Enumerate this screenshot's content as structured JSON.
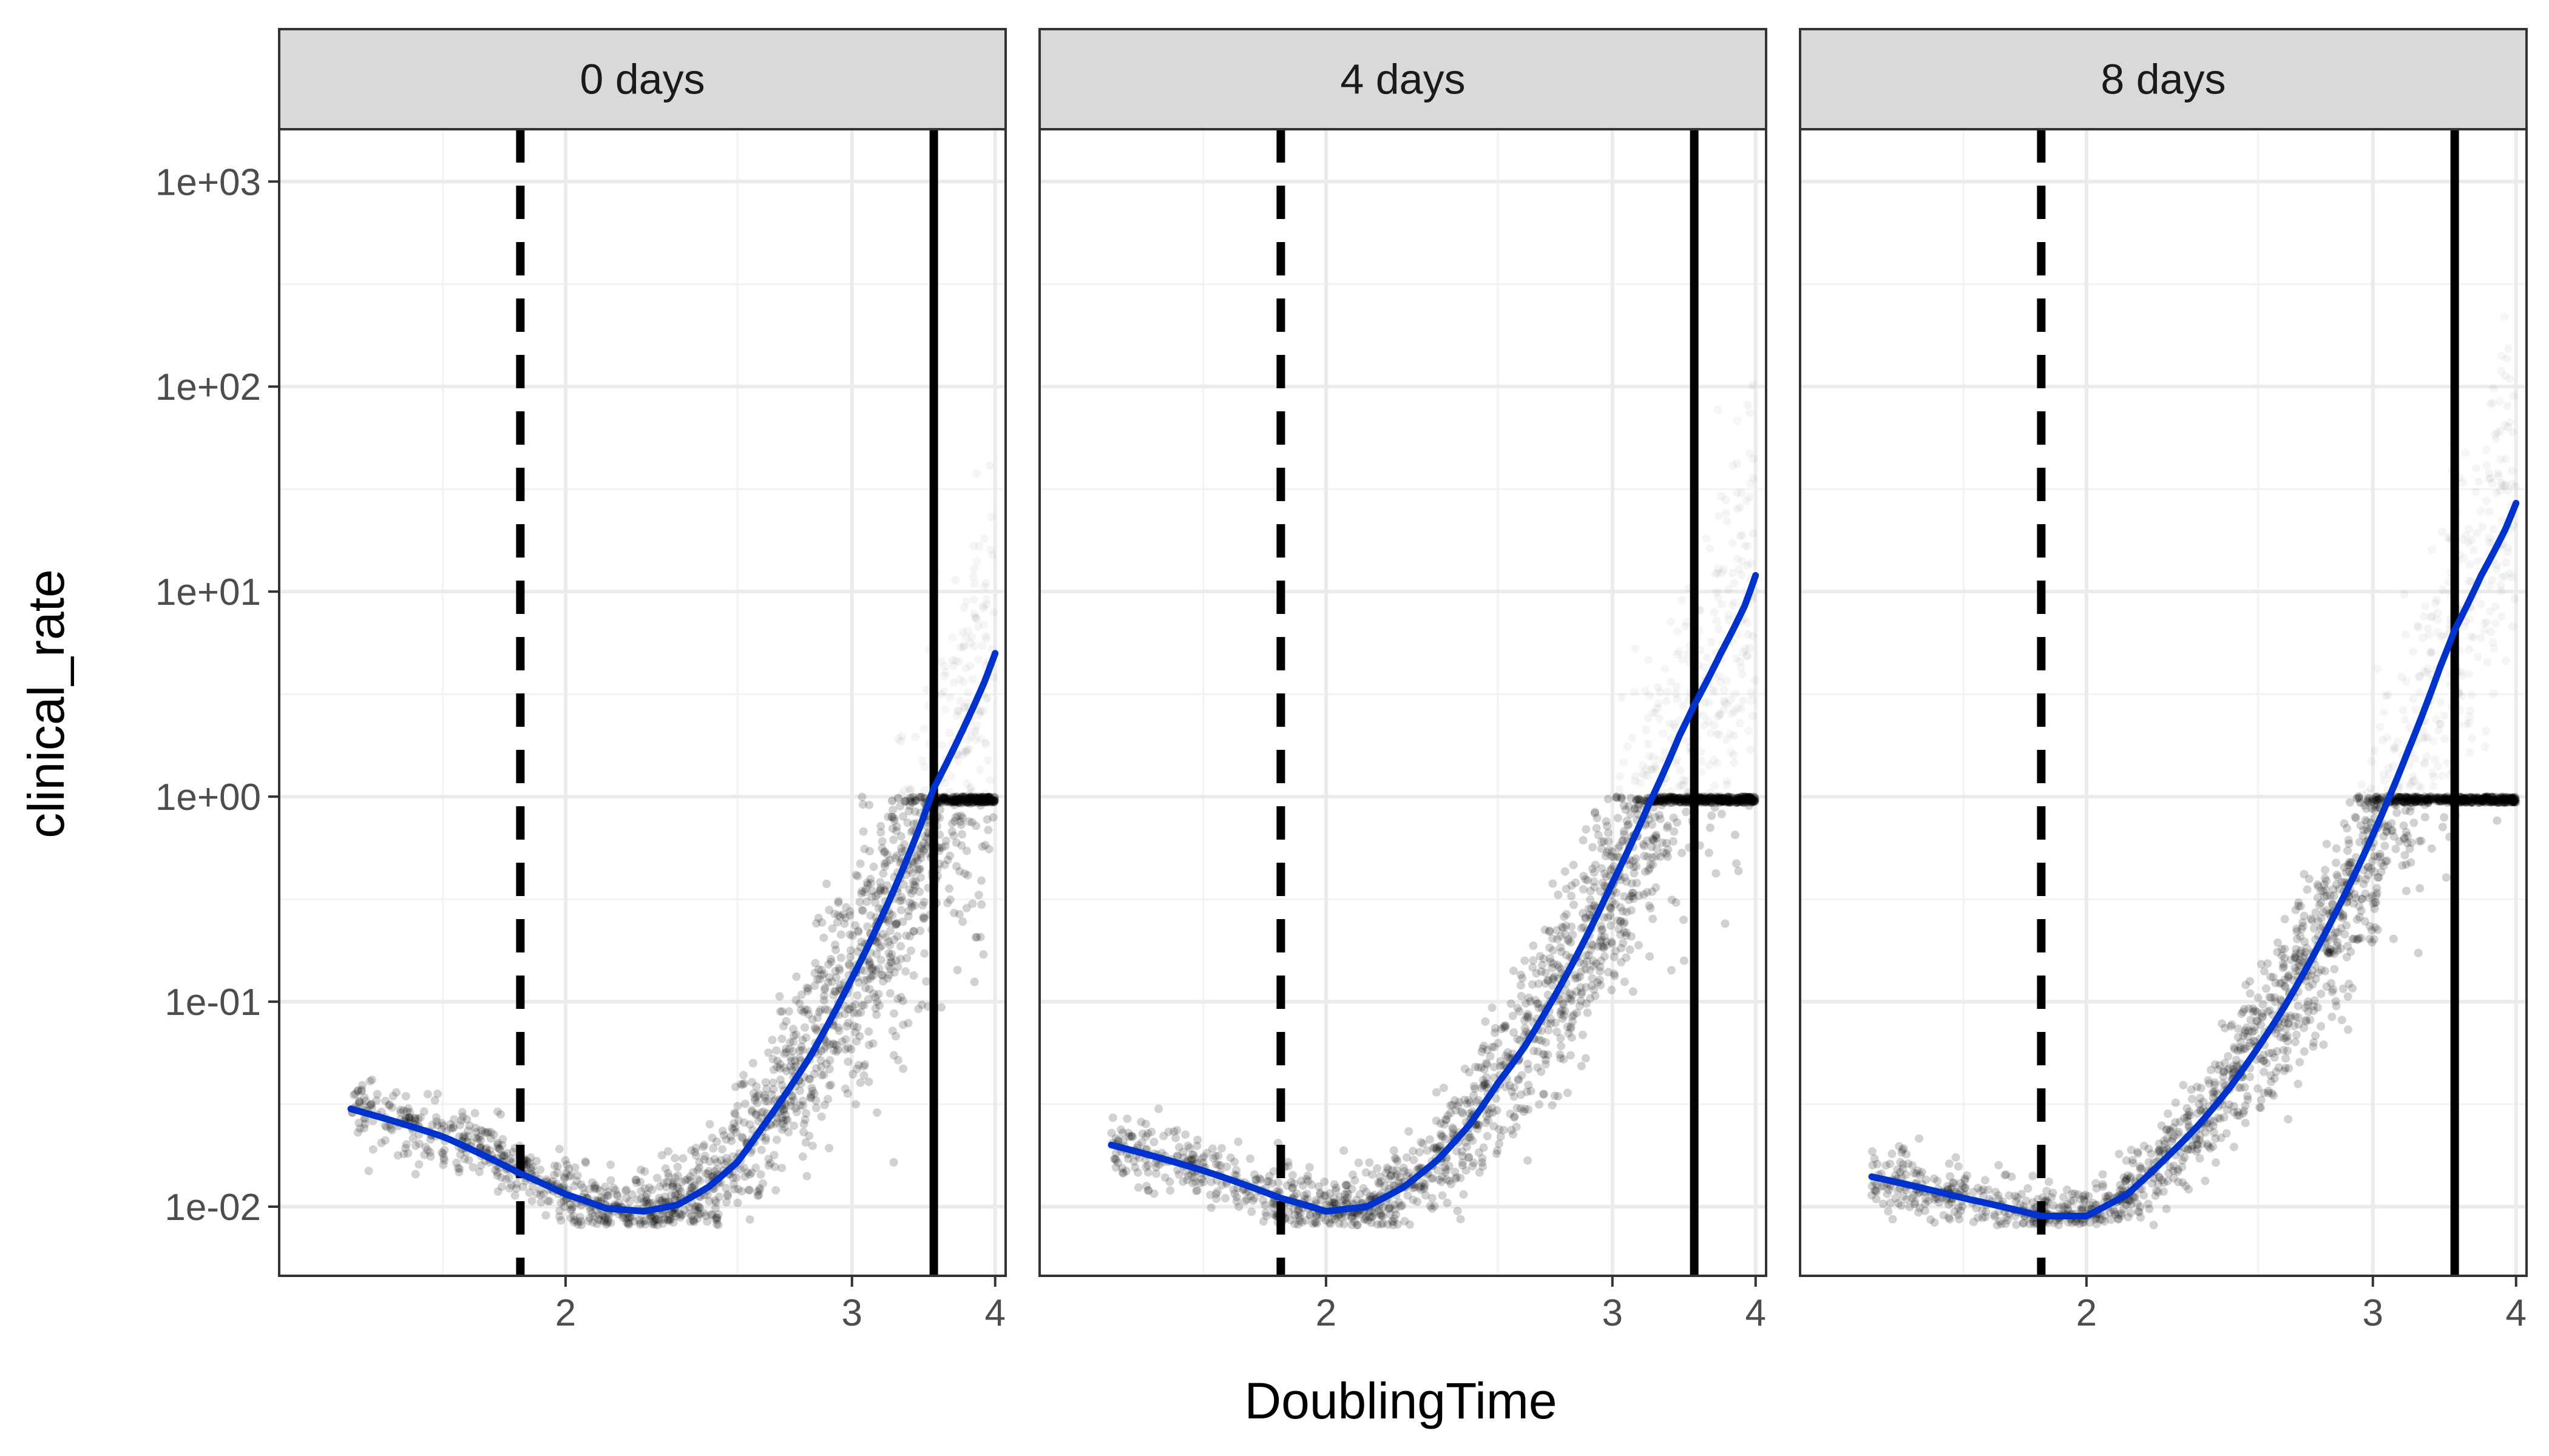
{
  "chart_data": {
    "type": "scatter",
    "xlabel": "DoublingTime",
    "ylabel": "clinical_rate",
    "x_scale": "reciprocal",
    "y_scale": "log10",
    "xlim": [
      1.5,
      4.1
    ],
    "ylim": [
      0.0046,
      1800
    ],
    "x_ticks": [
      2,
      3,
      4
    ],
    "y_ticks": [
      0.01,
      0.1,
      1,
      10,
      100,
      1000
    ],
    "y_tick_labels": [
      "1e-02",
      "1e-01",
      "1e+00",
      "1e+01",
      "1e+02",
      "1e+03"
    ],
    "grid": true,
    "point_color": "#000000",
    "fit_color": "#0033cc",
    "reference_lines": [
      {
        "style": "dashed",
        "x": 1.9
      },
      {
        "style": "solid",
        "x": 3.5
      }
    ],
    "panels": [
      {
        "facet": "0 days",
        "smooth": {
          "x": [
            1.6,
            1.75,
            1.9,
            2.0,
            2.1,
            2.2,
            2.3,
            2.4,
            2.5,
            2.6,
            2.8,
            3.0,
            3.2,
            3.4,
            3.5,
            3.7,
            3.9,
            4.0
          ],
          "y": [
            0.03,
            0.022,
            0.0145,
            0.0115,
            0.0098,
            0.0095,
            0.0102,
            0.0125,
            0.0165,
            0.025,
            0.055,
            0.13,
            0.3,
            0.7,
            1.1,
            2.0,
            3.6,
            5.0
          ]
        }
      },
      {
        "facet": "4 days",
        "smooth": {
          "x": [
            1.6,
            1.75,
            1.9,
            2.0,
            2.1,
            2.2,
            2.3,
            2.4,
            2.5,
            2.6,
            2.8,
            3.0,
            3.2,
            3.4,
            3.5,
            3.7,
            3.9,
            4.0
          ],
          "y": [
            0.02,
            0.015,
            0.011,
            0.0095,
            0.01,
            0.0125,
            0.017,
            0.025,
            0.04,
            0.06,
            0.15,
            0.38,
            0.9,
            2.0,
            2.8,
            5.0,
            8.5,
            12.0
          ]
        }
      },
      {
        "facet": "8 days",
        "smooth": {
          "x": [
            1.6,
            1.75,
            1.9,
            2.0,
            2.1,
            2.2,
            2.3,
            2.4,
            2.5,
            2.6,
            2.8,
            3.0,
            3.2,
            3.4,
            3.5,
            3.7,
            3.9,
            4.0
          ],
          "y": [
            0.014,
            0.011,
            0.009,
            0.009,
            0.0115,
            0.017,
            0.025,
            0.038,
            0.06,
            0.095,
            0.25,
            0.65,
            1.7,
            4.3,
            6.5,
            12.0,
            20.0,
            27.0
          ]
        }
      }
    ]
  }
}
